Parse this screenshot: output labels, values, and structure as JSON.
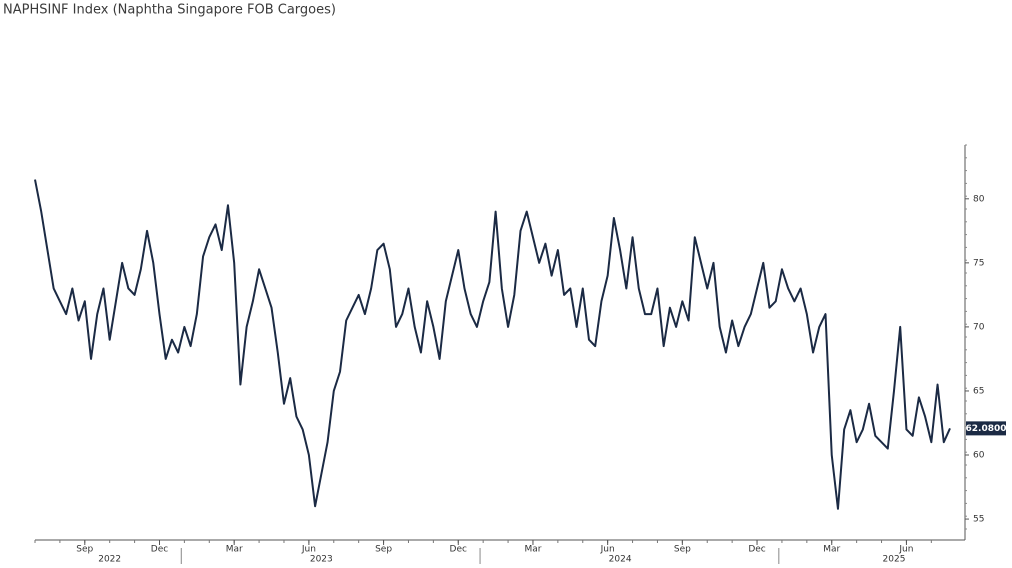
{
  "chart_data": {
    "type": "line",
    "title": "NAPHSINF Index (Naphtha Singapore FOB Cargoes)",
    "categories": [
      null,
      null,
      null,
      null,
      null,
      null,
      null,
      null,
      "Sep",
      null,
      null,
      null,
      null,
      null,
      null,
      null,
      null,
      null,
      null,
      null,
      "Dec",
      null,
      null,
      null,
      null,
      null,
      null,
      null,
      null,
      null,
      null,
      null,
      "Mar",
      null,
      null,
      null,
      null,
      null,
      null,
      null,
      null,
      null,
      null,
      null,
      "Jun",
      null,
      null,
      null,
      null,
      null,
      null,
      null,
      null,
      null,
      null,
      null,
      "Sep",
      null,
      null,
      null,
      null,
      null,
      null,
      null,
      null,
      null,
      null,
      null,
      "Dec",
      null,
      null,
      null,
      null,
      null,
      null,
      null,
      null,
      null,
      null,
      null,
      "Mar",
      null,
      null,
      null,
      null,
      null,
      null,
      null,
      null,
      null,
      null,
      null,
      "Jun",
      null,
      null,
      null,
      null,
      null,
      null,
      null,
      null,
      null,
      null,
      null,
      "Sep",
      null,
      null,
      null,
      null,
      null,
      null,
      null,
      null,
      null,
      null,
      null,
      "Dec",
      null,
      null,
      null,
      null,
      null,
      null,
      null,
      null,
      null,
      null,
      null,
      "Mar",
      null,
      null,
      null,
      null,
      null,
      null,
      null,
      null,
      null,
      null,
      null,
      "Jun",
      null,
      null,
      null,
      null,
      null,
      null,
      null
    ],
    "years": [
      null,
      null,
      null,
      null,
      null,
      null,
      null,
      null,
      null,
      null,
      null,
      null,
      "2022",
      null,
      null,
      null,
      null,
      null,
      null,
      null,
      null,
      null,
      null,
      null,
      null,
      null,
      null,
      null,
      null,
      null,
      null,
      null,
      null,
      null,
      null,
      null,
      null,
      null,
      null,
      null,
      null,
      null,
      null,
      null,
      null,
      null,
      "2023",
      null,
      null,
      null,
      null,
      null,
      null,
      null,
      null,
      null,
      null,
      null,
      null,
      null,
      null,
      null,
      null,
      null,
      null,
      null,
      null,
      null,
      null,
      null,
      null,
      null,
      null,
      null,
      null,
      null,
      null,
      null,
      null,
      null,
      null,
      null,
      null,
      null,
      null,
      null,
      null,
      null,
      null,
      null,
      null,
      null,
      null,
      null,
      "2024",
      null,
      null,
      null,
      null,
      null,
      null,
      null,
      null,
      null,
      null,
      null,
      null,
      null,
      null,
      null,
      null,
      null,
      null,
      null,
      null,
      null,
      null,
      null,
      null,
      null,
      null,
      null,
      null,
      null,
      null,
      null,
      null,
      null,
      null,
      null,
      null,
      null,
      null,
      null,
      null,
      null,
      null,
      null,
      "2025",
      null,
      null,
      null,
      null,
      null,
      null,
      null,
      null,
      null
    ],
    "series": [
      {
        "color": "#1b2a44",
        "values": [
          81.5,
          79,
          76,
          73,
          72,
          71,
          73,
          70.5,
          72,
          67.5,
          71,
          73,
          69,
          72,
          75,
          73,
          72.5,
          74.5,
          77.5,
          75,
          71,
          67.5,
          69,
          68,
          70,
          68.5,
          71,
          75.5,
          77,
          78,
          76,
          79.5,
          75,
          65.5,
          70,
          72,
          74.5,
          73,
          71.5,
          68,
          64,
          66,
          63,
          62,
          60,
          56,
          58.5,
          61,
          65,
          66.5,
          70.5,
          71.5,
          72.5,
          71,
          73,
          76,
          76.5,
          74.5,
          70,
          71,
          73,
          70,
          68,
          72,
          70,
          67.5,
          72,
          74,
          76,
          73,
          71,
          70,
          72,
          73.5,
          79,
          73,
          70,
          72.5,
          77.5,
          79,
          77,
          75,
          76.5,
          74,
          76,
          72.5,
          73,
          70,
          73,
          69,
          68.5,
          72,
          74,
          78.5,
          76,
          73,
          77,
          73,
          71,
          71,
          73,
          68.5,
          71.5,
          70,
          72,
          70.5,
          77,
          75,
          73,
          75,
          70,
          68,
          70.5,
          68.5,
          70,
          71,
          73,
          75,
          71.5,
          72,
          74.5,
          73,
          72,
          73,
          71,
          68,
          70,
          71,
          60,
          55.8,
          62,
          63.5,
          61,
          62,
          64,
          61.5,
          61,
          60.5,
          65,
          70,
          62,
          61.5,
          64.5,
          63,
          61,
          65.5,
          61,
          62.08
        ]
      }
    ],
    "last_value_label": "62.0800",
    "ylim": [
      53.6,
      84.2
    ],
    "yticks": [
      55,
      60,
      65,
      70,
      75,
      80
    ]
  }
}
